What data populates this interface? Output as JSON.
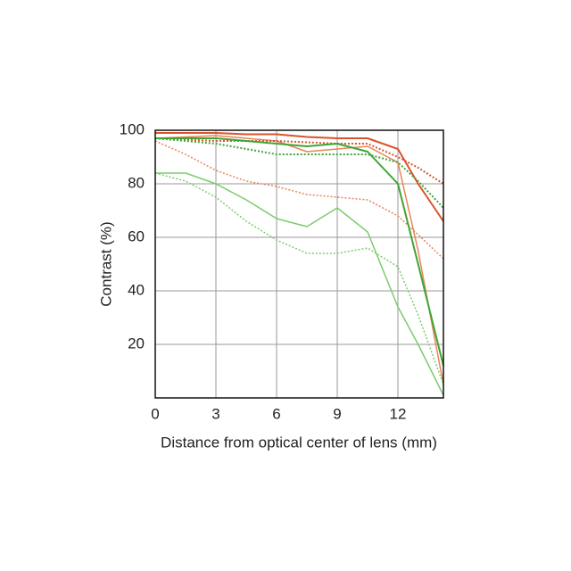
{
  "chart_data": {
    "type": "line",
    "xlabel": "Distance from optical center of lens (mm)",
    "ylabel": "Contrast (%)",
    "x": [
      0,
      1.5,
      3,
      4.5,
      6,
      7.5,
      9,
      10.5,
      12,
      13,
      14.25
    ],
    "xlim": [
      0,
      14.25
    ],
    "xticks": [
      0,
      3,
      6,
      9,
      12
    ],
    "ylim": [
      0,
      100
    ],
    "yticks": [
      20,
      40,
      60,
      80,
      100
    ],
    "grid": true,
    "series": [
      {
        "color": "#d9542b",
        "dash": false,
        "width": 2,
        "values": [
          99,
          99,
          99,
          98.5,
          98.5,
          97.5,
          97,
          97,
          93,
          80,
          66
        ]
      },
      {
        "color": "#e8845a",
        "dash": false,
        "width": 1.5,
        "values": [
          97,
          97.5,
          98,
          97,
          96,
          92,
          93,
          94,
          88,
          55,
          5
        ]
      },
      {
        "color": "#d9542b",
        "dash": true,
        "width": 2,
        "values": [
          97,
          96.5,
          96,
          96,
          96,
          95.5,
          95,
          95,
          90,
          86,
          80
        ]
      },
      {
        "color": "#e8845a",
        "dash": true,
        "width": 1.5,
        "values": [
          96,
          91,
          85,
          81,
          79,
          76,
          75,
          74,
          68,
          61,
          52
        ]
      },
      {
        "color": "#3fa535",
        "dash": false,
        "width": 2,
        "values": [
          97,
          97,
          97,
          96,
          95,
          94,
          95,
          92,
          80,
          50,
          12
        ]
      },
      {
        "color": "#3fa535",
        "dash": true,
        "width": 2,
        "values": [
          97,
          96,
          95,
          93,
          91,
          91,
          91,
          91,
          88,
          81,
          71
        ]
      },
      {
        "color": "#7ccb6e",
        "dash": false,
        "width": 1.5,
        "values": [
          84,
          84,
          80,
          74,
          67,
          64,
          71,
          62,
          34,
          20,
          1
        ]
      },
      {
        "color": "#7ccb6e",
        "dash": true,
        "width": 1.5,
        "values": [
          84,
          81,
          75,
          66,
          59,
          54,
          54,
          56,
          49,
          31,
          5
        ]
      }
    ]
  }
}
